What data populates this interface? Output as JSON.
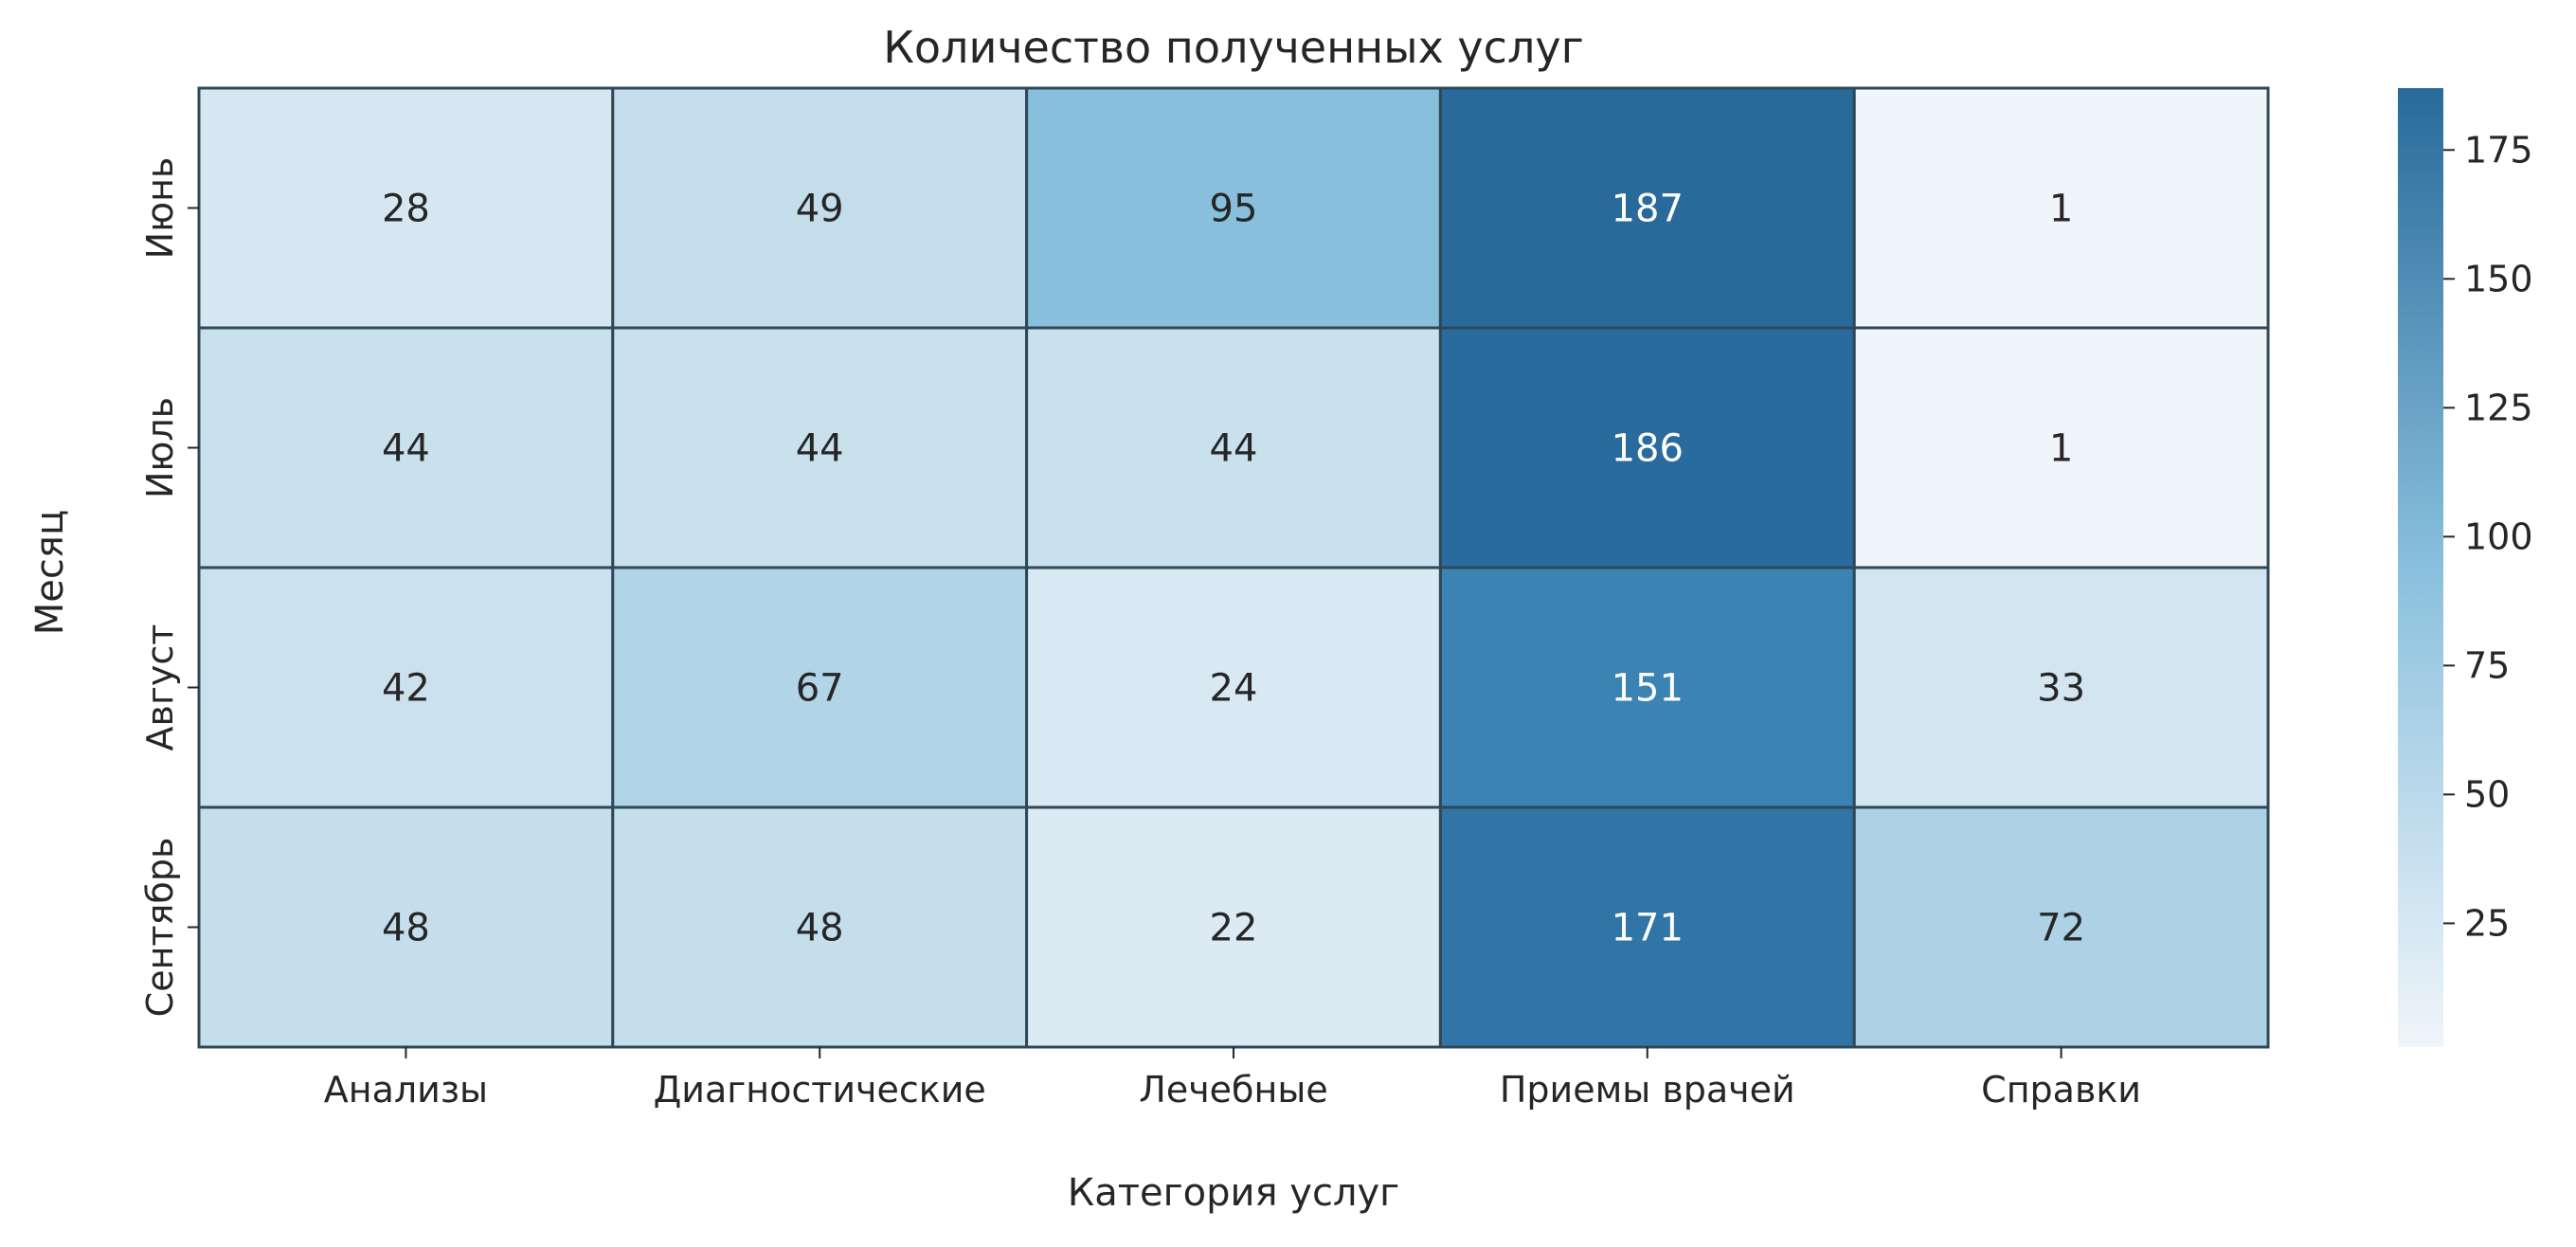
{
  "chart_data": {
    "type": "heatmap",
    "title": "Количество полученных услуг",
    "xlabel": "Категория услуг",
    "ylabel": "Месяц",
    "x_categories": [
      "Анализы",
      "Диагностические",
      "Лечебные",
      "Приемы врачей",
      "Справки"
    ],
    "y_categories": [
      "Июнь",
      "Июль",
      "Август",
      "Сентябрь"
    ],
    "values": [
      [
        28,
        49,
        95,
        187,
        1
      ],
      [
        44,
        44,
        44,
        186,
        1
      ],
      [
        42,
        67,
        24,
        151,
        33
      ],
      [
        48,
        48,
        22,
        171,
        72
      ]
    ],
    "colorbar": {
      "range": [
        1,
        187
      ],
      "ticks": [
        25,
        50,
        75,
        100,
        125,
        150,
        175
      ]
    },
    "colors": {
      "low": "#f0f5fa",
      "mid": "#89c0dd",
      "high": "#296a9b",
      "cell_border": "#2f4858",
      "text_dark": "#262626",
      "text_light": "#ffffff"
    }
  }
}
